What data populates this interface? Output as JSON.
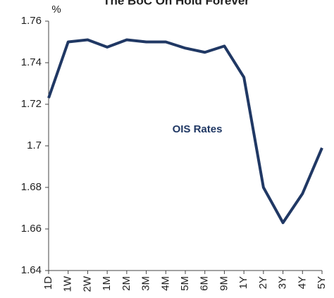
{
  "chart_data": {
    "type": "line",
    "title": "The BoC On Hold Forever",
    "ylabel": "%",
    "categories": [
      "1D",
      "1W",
      "2W",
      "1M",
      "2M",
      "3M",
      "4M",
      "5M",
      "6M",
      "9M",
      "1Y",
      "2Y",
      "3Y",
      "4Y",
      "5Y"
    ],
    "series": [
      {
        "name": "OIS Rates",
        "color": "#203864",
        "values": [
          1.723,
          1.75,
          1.751,
          1.7475,
          1.751,
          1.75,
          1.75,
          1.747,
          1.745,
          1.748,
          1.733,
          1.68,
          1.663,
          1.677,
          1.699
        ]
      }
    ],
    "ylim": [
      1.64,
      1.76
    ],
    "yticks": [
      1.64,
      1.66,
      1.68,
      1.7,
      1.72,
      1.74,
      1.76
    ],
    "grid": false
  }
}
